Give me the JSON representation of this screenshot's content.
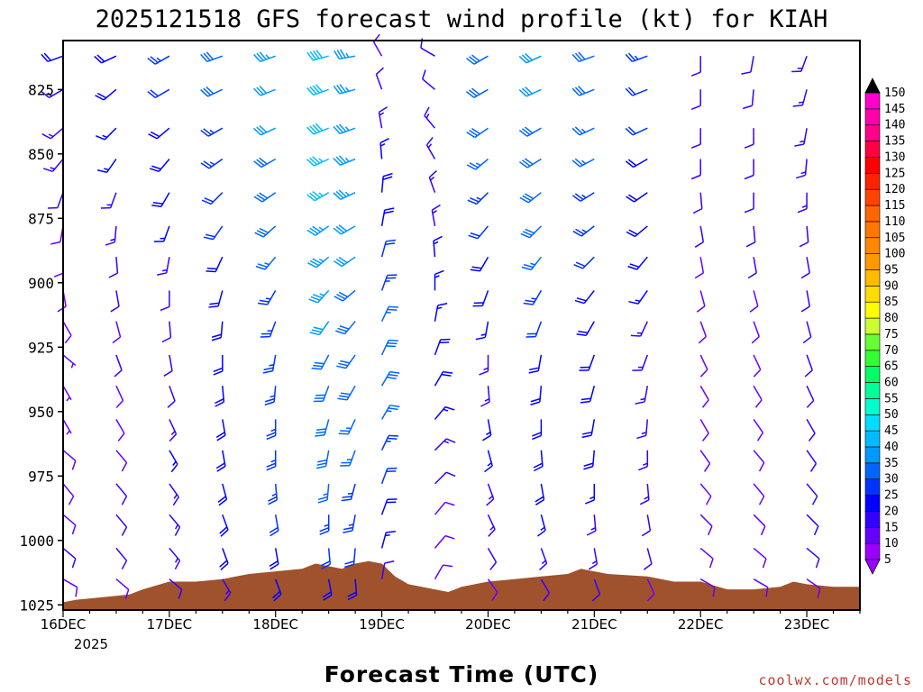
{
  "chart_data": {
    "type": "wind-profile",
    "title": "2025121518 GFS forecast wind profile (kt) for KIAH",
    "xlabel": "Forecast Time (UTC)",
    "ylabel": "",
    "credit": "coolwx.com/models",
    "y_ticks": [
      825,
      850,
      875,
      900,
      925,
      950,
      975,
      1000,
      1025
    ],
    "ylim": [
      806,
      1027
    ],
    "barb_levels": [
      812,
      825,
      840,
      852,
      865,
      878,
      890,
      903,
      915,
      928,
      940,
      953,
      965,
      978,
      990,
      1003,
      1015
    ],
    "x_ticks": [
      {
        "label": "16DEC",
        "hour": 6
      },
      {
        "label": "17DEC",
        "hour": 30
      },
      {
        "label": "18DEC",
        "hour": 54
      },
      {
        "label": "19DEC",
        "hour": 78
      },
      {
        "label": "20DEC",
        "hour": 102
      },
      {
        "label": "21DEC",
        "hour": 126
      },
      {
        "label": "22DEC",
        "hour": 150
      },
      {
        "label": "23DEC",
        "hour": 174
      }
    ],
    "x_year_label": "2025",
    "xlim": [
      6,
      186
    ],
    "colorbar_levels": [
      5,
      10,
      15,
      20,
      25,
      30,
      35,
      40,
      45,
      50,
      55,
      60,
      65,
      70,
      75,
      80,
      85,
      90,
      95,
      100,
      105,
      110,
      115,
      120,
      125,
      130,
      135,
      140,
      145,
      150
    ],
    "colorbar_colors": [
      "#9b00ff",
      "#6600ff",
      "#3300ff",
      "#0000ff",
      "#0033ff",
      "#0066ff",
      "#0099ff",
      "#00bbff",
      "#00ddff",
      "#00ffcc",
      "#00ff99",
      "#00ff66",
      "#33ff33",
      "#66ff33",
      "#ccff33",
      "#ffff00",
      "#ffdd00",
      "#ffbb00",
      "#ff9900",
      "#ff8800",
      "#ff7700",
      "#ff6600",
      "#ff4400",
      "#ff2200",
      "#ff0000",
      "#ff0044",
      "#ff0088",
      "#ff00aa",
      "#ff00cc",
      "#ff00ff"
    ],
    "surface_pressure": [
      {
        "hour": 6,
        "p": 1024
      },
      {
        "hour": 9,
        "p": 1023
      },
      {
        "hour": 15,
        "p": 1022
      },
      {
        "hour": 21,
        "p": 1021
      },
      {
        "hour": 24,
        "p": 1019
      },
      {
        "hour": 30,
        "p": 1016
      },
      {
        "hour": 36,
        "p": 1016
      },
      {
        "hour": 42,
        "p": 1015
      },
      {
        "hour": 48,
        "p": 1013
      },
      {
        "hour": 54,
        "p": 1012
      },
      {
        "hour": 60,
        "p": 1011
      },
      {
        "hour": 63,
        "p": 1009
      },
      {
        "hour": 66,
        "p": 1010
      },
      {
        "hour": 69,
        "p": 1011
      },
      {
        "hour": 72,
        "p": 1009
      },
      {
        "hour": 75,
        "p": 1008
      },
      {
        "hour": 78,
        "p": 1009
      },
      {
        "hour": 81,
        "p": 1014
      },
      {
        "hour": 84,
        "p": 1017
      },
      {
        "hour": 87,
        "p": 1018
      },
      {
        "hour": 90,
        "p": 1019
      },
      {
        "hour": 93,
        "p": 1020
      },
      {
        "hour": 96,
        "p": 1018
      },
      {
        "hour": 99,
        "p": 1017
      },
      {
        "hour": 102,
        "p": 1016
      },
      {
        "hour": 108,
        "p": 1015
      },
      {
        "hour": 114,
        "p": 1014
      },
      {
        "hour": 120,
        "p": 1013
      },
      {
        "hour": 123,
        "p": 1011
      },
      {
        "hour": 126,
        "p": 1012
      },
      {
        "hour": 129,
        "p": 1013
      },
      {
        "hour": 138,
        "p": 1014
      },
      {
        "hour": 144,
        "p": 1016
      },
      {
        "hour": 150,
        "p": 1016
      },
      {
        "hour": 156,
        "p": 1019
      },
      {
        "hour": 162,
        "p": 1019
      },
      {
        "hour": 168,
        "p": 1018
      },
      {
        "hour": 171,
        "p": 1016
      },
      {
        "hour": 174,
        "p": 1017
      },
      {
        "hour": 180,
        "p": 1018
      },
      {
        "hour": 186,
        "p": 1018
      }
    ],
    "wind_series": [
      {
        "name": "16DEC 06Z",
        "hour": 6,
        "dir": [
          250,
          240,
          230,
          220,
          200,
          190,
          180,
          170,
          150,
          130,
          150,
          150,
          130,
          140,
          130,
          130,
          120
        ],
        "speed": [
          20,
          15,
          14,
          13,
          12,
          10,
          10,
          9,
          8,
          6,
          6,
          7,
          8,
          10,
          10,
          11,
          10
        ]
      },
      {
        "name": "16DEC 18Z",
        "hour": 18,
        "dir": [
          245,
          230,
          225,
          215,
          200,
          185,
          175,
          170,
          165,
          160,
          155,
          150,
          140,
          140,
          140,
          140,
          130
        ],
        "speed": [
          20,
          18,
          17,
          16,
          15,
          14,
          12,
          11,
          10,
          11,
          10,
          10,
          10,
          11,
          11,
          12,
          10
        ]
      },
      {
        "name": "17DEC 06Z",
        "hour": 30,
        "dir": [
          240,
          240,
          230,
          220,
          210,
          200,
          190,
          180,
          175,
          170,
          160,
          155,
          150,
          145,
          140,
          140,
          130
        ],
        "speed": [
          25,
          22,
          18,
          18,
          18,
          16,
          14,
          12,
          12,
          12,
          12,
          14,
          16,
          15,
          14,
          14,
          12
        ]
      },
      {
        "name": "17DEC 18Z",
        "hour": 42,
        "dir": [
          250,
          245,
          240,
          235,
          225,
          215,
          205,
          195,
          185,
          180,
          175,
          170,
          170,
          165,
          160,
          160,
          150
        ],
        "speed": [
          30,
          28,
          25,
          24,
          22,
          22,
          20,
          20,
          18,
          18,
          18,
          20,
          20,
          20,
          20,
          18,
          15
        ]
      },
      {
        "name": "18DEC 06Z",
        "hour": 54,
        "dir": [
          250,
          248,
          245,
          240,
          235,
          228,
          220,
          210,
          200,
          190,
          185,
          180,
          180,
          175,
          170,
          170,
          160
        ],
        "speed": [
          35,
          32,
          32,
          30,
          30,
          28,
          26,
          25,
          24,
          24,
          24,
          25,
          25,
          24,
          22,
          20,
          18
        ]
      },
      {
        "name": "18DEC 18Z",
        "hour": 66,
        "dir": [
          255,
          250,
          248,
          245,
          240,
          235,
          230,
          222,
          215,
          208,
          200,
          195,
          190,
          185,
          180,
          175,
          170
        ],
        "speed": [
          40,
          38,
          38,
          36,
          36,
          35,
          34,
          34,
          32,
          30,
          30,
          30,
          28,
          26,
          24,
          22,
          18
        ]
      },
      {
        "name": "19DEC 00Z",
        "hour": 72,
        "dir": [
          260,
          255,
          250,
          248,
          245,
          240,
          235,
          230,
          220,
          215,
          210,
          205,
          200,
          195,
          190,
          185,
          175
        ],
        "speed": [
          35,
          35,
          34,
          33,
          33,
          32,
          31,
          30,
          30,
          30,
          28,
          27,
          26,
          25,
          24,
          22,
          18
        ]
      },
      {
        "name": "19DEC 06Z",
        "hour": 78,
        "dir": [
          330,
          340,
          350,
          355,
          5,
          10,
          15,
          20,
          25,
          25,
          30,
          30,
          25,
          20,
          20,
          15,
          10
        ],
        "speed": [
          10,
          12,
          14,
          16,
          18,
          20,
          22,
          24,
          26,
          28,
          28,
          26,
          24,
          22,
          20,
          16,
          12
        ]
      },
      {
        "name": "19DEC 18Z",
        "hour": 90,
        "dir": [
          300,
          310,
          320,
          330,
          340,
          350,
          355,
          0,
          10,
          20,
          30,
          40,
          45,
          45,
          40,
          40,
          30
        ],
        "speed": [
          12,
          12,
          14,
          14,
          14,
          15,
          16,
          16,
          16,
          18,
          18,
          16,
          14,
          12,
          10,
          10,
          8
        ]
      },
      {
        "name": "20DEC 06Z",
        "hour": 102,
        "dir": [
          240,
          240,
          235,
          230,
          225,
          220,
          210,
          200,
          190,
          180,
          175,
          170,
          165,
          160,
          155,
          150,
          145
        ],
        "speed": [
          30,
          28,
          28,
          26,
          24,
          22,
          20,
          18,
          16,
          15,
          15,
          16,
          16,
          15,
          14,
          12,
          10
        ]
      },
      {
        "name": "20DEC 18Z",
        "hour": 114,
        "dir": [
          245,
          245,
          240,
          238,
          232,
          225,
          218,
          210,
          200,
          190,
          185,
          180,
          175,
          170,
          165,
          160,
          150
        ],
        "speed": [
          32,
          32,
          30,
          30,
          28,
          28,
          26,
          24,
          22,
          20,
          20,
          20,
          20,
          18,
          16,
          14,
          12
        ]
      },
      {
        "name": "21DEC 06Z",
        "hour": 126,
        "dir": [
          250,
          248,
          245,
          242,
          238,
          232,
          225,
          218,
          210,
          200,
          195,
          190,
          185,
          180,
          175,
          170,
          160
        ],
        "speed": [
          28,
          28,
          26,
          26,
          25,
          24,
          22,
          20,
          18,
          18,
          18,
          18,
          18,
          16,
          15,
          14,
          12
        ]
      },
      {
        "name": "21DEC 18Z",
        "hour": 138,
        "dir": [
          250,
          248,
          245,
          240,
          235,
          230,
          220,
          215,
          205,
          200,
          190,
          185,
          180,
          175,
          170,
          165,
          155
        ],
        "speed": [
          24,
          22,
          22,
          20,
          20,
          18,
          18,
          16,
          15,
          14,
          14,
          15,
          15,
          14,
          12,
          12,
          10
        ]
      },
      {
        "name": "22DEC 06Z",
        "hour": 150,
        "dir": [
          180,
          180,
          180,
          180,
          175,
          170,
          170,
          165,
          160,
          155,
          150,
          150,
          145,
          140,
          135,
          130,
          120
        ],
        "speed": [
          12,
          12,
          12,
          12,
          11,
          11,
          10,
          10,
          10,
          10,
          10,
          10,
          10,
          10,
          9,
          9,
          8
        ]
      },
      {
        "name": "22DEC 18Z",
        "hour": 162,
        "dir": [
          190,
          185,
          180,
          180,
          180,
          175,
          170,
          165,
          160,
          155,
          150,
          145,
          140,
          140,
          135,
          130,
          120
        ],
        "speed": [
          12,
          12,
          12,
          12,
          12,
          11,
          11,
          10,
          10,
          10,
          10,
          10,
          10,
          10,
          10,
          10,
          8
        ]
      },
      {
        "name": "23DEC 06Z",
        "hour": 174,
        "dir": [
          200,
          195,
          190,
          185,
          180,
          175,
          170,
          170,
          165,
          160,
          155,
          150,
          145,
          140,
          135,
          130,
          125
        ],
        "speed": [
          15,
          14,
          14,
          13,
          13,
          12,
          12,
          12,
          11,
          11,
          11,
          12,
          12,
          12,
          12,
          12,
          10
        ]
      }
    ]
  }
}
